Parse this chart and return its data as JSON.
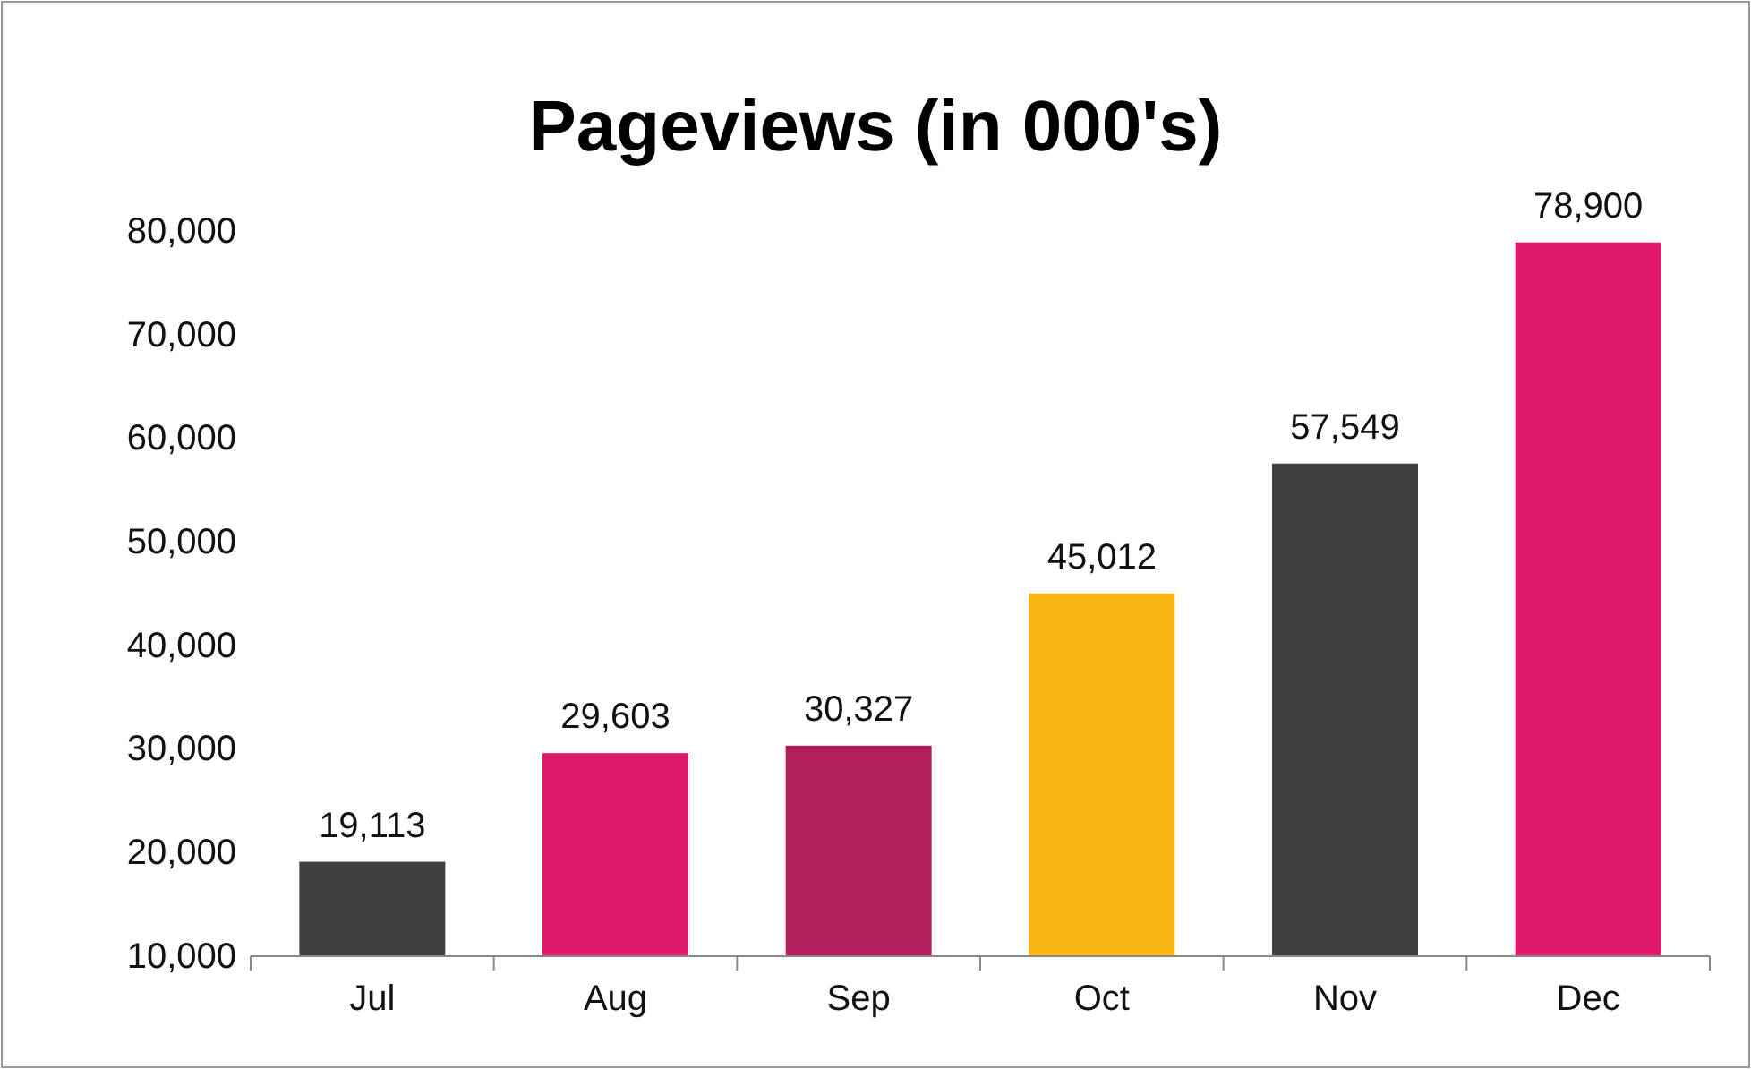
{
  "chart_data": {
    "type": "bar",
    "title": "Pageviews (in 000's)",
    "categories": [
      "Jul",
      "Aug",
      "Sep",
      "Oct",
      "Nov",
      "Dec"
    ],
    "values": [
      19113,
      29603,
      30327,
      45012,
      57549,
      78900
    ],
    "colors": [
      "#404040",
      "#e0196a",
      "#b31e5c",
      "#fbb416",
      "#404040",
      "#e0196a"
    ],
    "ylim": [
      10000,
      80000
    ],
    "yticks": [
      {
        "value": 10000,
        "label": "10,000"
      },
      {
        "value": 20000,
        "label": "20,000"
      },
      {
        "value": 30000,
        "label": "30,000"
      },
      {
        "value": 40000,
        "label": "40,000"
      },
      {
        "value": 50000,
        "label": "50,000"
      },
      {
        "value": 60000,
        "label": "60,000"
      },
      {
        "value": 70000,
        "label": "70,000"
      },
      {
        "value": 80000,
        "label": "80,000"
      }
    ],
    "value_labels": [
      "19,113",
      "29,603",
      "30,327",
      "45,012",
      "57,549",
      "78,900"
    ],
    "grid": false
  }
}
